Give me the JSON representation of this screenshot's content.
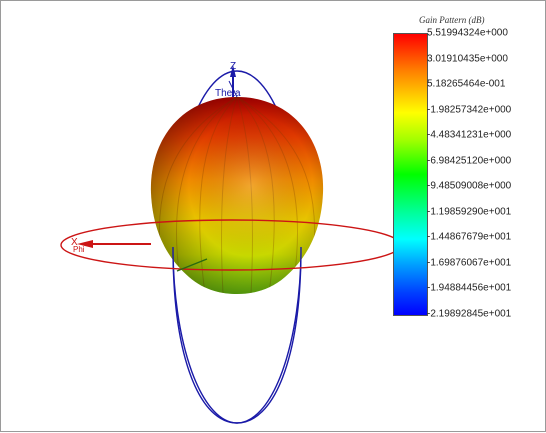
{
  "viewer": {
    "axes": {
      "x": "X",
      "z": "Z",
      "theta": "Theta",
      "phi": "Phi"
    }
  },
  "legend": {
    "title": "Gain Pattern (dB)",
    "ticks": [
      "5.51994324e+000",
      "3.01910435e+000",
      "5.18265464e-001",
      "-1.98257342e+000",
      "-4.48341231e+000",
      "-6.98425120e+000",
      "-9.48509008e+000",
      "-1.19859290e+001",
      "-1.44867679e+001",
      "-1.69876067e+001",
      "-1.94884456e+001",
      "-2.19892845e+001"
    ]
  }
}
